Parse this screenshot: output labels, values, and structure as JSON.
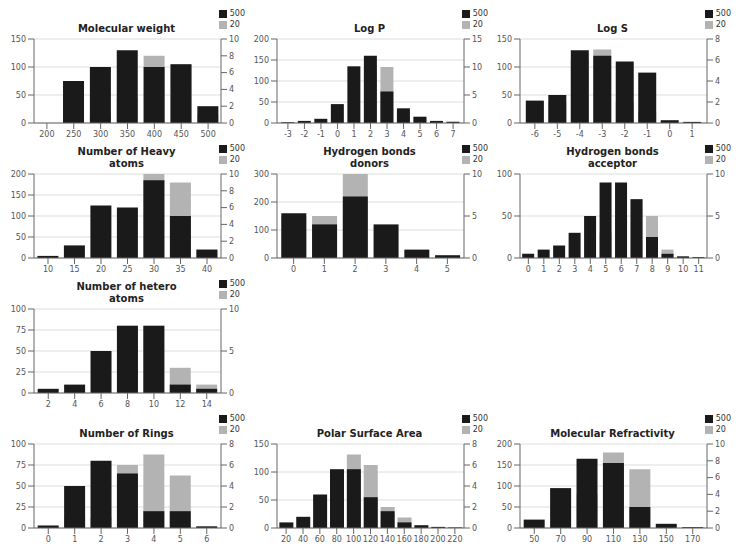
{
  "chart_data": [
    {
      "type": "bar",
      "title": "Molecular weight",
      "x": [
        200,
        250,
        300,
        350,
        400,
        450,
        500
      ],
      "xlim": [
        176,
        524
      ],
      "xticks": [
        200,
        250,
        300,
        350,
        400,
        450,
        500
      ],
      "series": [
        {
          "name": "500",
          "color": "#1a1a1a",
          "values": [
            0,
            75,
            100,
            130,
            100,
            105,
            30
          ]
        },
        {
          "name": "20",
          "color": "#b3b3b3",
          "axis": "y2",
          "values": [
            0,
            1,
            1,
            3,
            8,
            7,
            1
          ]
        }
      ],
      "ylim": [
        0,
        150
      ],
      "yticks": [
        0,
        50,
        100,
        150
      ],
      "y2lim": [
        0,
        10
      ],
      "y2ticks": [
        0,
        2,
        4,
        6,
        8,
        10
      ],
      "grid": true,
      "legend": "upper right"
    },
    {
      "type": "bar",
      "title": "Log P",
      "x": [
        -3,
        -2,
        -1,
        0,
        1,
        2,
        3,
        4,
        5,
        6,
        7
      ],
      "xlim": [
        -3.66,
        7.66
      ],
      "xticks": [
        -3,
        -2,
        -1,
        0,
        1,
        2,
        3,
        4,
        5,
        6,
        7
      ],
      "series": [
        {
          "name": "500",
          "color": "#1a1a1a",
          "values": [
            2,
            5,
            10,
            45,
            135,
            160,
            75,
            35,
            15,
            5,
            3
          ]
        },
        {
          "name": "20",
          "color": "#b3b3b3",
          "axis": "y2",
          "values": [
            0,
            0,
            0,
            0,
            0,
            10,
            10,
            2,
            1,
            0,
            0
          ]
        }
      ],
      "ylim": [
        0,
        200
      ],
      "yticks": [
        0,
        50,
        100,
        150,
        200
      ],
      "y2lim": [
        0,
        15
      ],
      "y2ticks": [
        0,
        5,
        10,
        15
      ],
      "grid": true,
      "legend": "upper right"
    },
    {
      "type": "bar",
      "title": "Log S",
      "x": [
        -6,
        -5,
        -4,
        -3,
        -2,
        -1,
        0,
        1
      ],
      "xlim": [
        -6.66,
        1.66
      ],
      "xticks": [
        -6,
        -5,
        -4,
        -3,
        -2,
        -1,
        0,
        1
      ],
      "series": [
        {
          "name": "500",
          "color": "#1a1a1a",
          "values": [
            40,
            50,
            130,
            120,
            110,
            90,
            5,
            2
          ]
        },
        {
          "name": "20",
          "color": "#b3b3b3",
          "axis": "y2",
          "values": [
            2,
            2,
            6,
            7,
            2,
            1,
            0,
            0
          ]
        }
      ],
      "ylim": [
        0,
        150
      ],
      "yticks": [
        0,
        50,
        100,
        150
      ],
      "y2lim": [
        0,
        8
      ],
      "y2ticks": [
        0,
        2,
        4,
        6,
        8
      ],
      "grid": true,
      "legend": "upper right"
    },
    {
      "type": "bar",
      "title": "Number of Heavy\natoms",
      "x": [
        10,
        15,
        20,
        25,
        30,
        35,
        40
      ],
      "xlim": [
        7.36,
        42.64
      ],
      "xticks": [
        10,
        15,
        20,
        25,
        30,
        35,
        40
      ],
      "series": [
        {
          "name": "500",
          "color": "#1a1a1a",
          "values": [
            5,
            30,
            125,
            120,
            185,
            100,
            20
          ]
        },
        {
          "name": "20",
          "color": "#b3b3b3",
          "axis": "y2",
          "values": [
            0,
            0,
            0,
            0,
            10,
            9,
            1
          ]
        }
      ],
      "ylim": [
        0,
        200
      ],
      "yticks": [
        0,
        50,
        100,
        150,
        200
      ],
      "y2lim": [
        0,
        10
      ],
      "y2ticks": [
        0,
        2,
        4,
        6,
        8,
        10
      ],
      "grid": true,
      "legend": "upper right"
    },
    {
      "type": "bar",
      "title": "Hydrogen bonds\ndonors",
      "x": [
        0,
        1,
        2,
        3,
        4,
        5
      ],
      "xlim": [
        -0.54,
        5.54
      ],
      "xticks": [
        0,
        1,
        2,
        3,
        4,
        5
      ],
      "series": [
        {
          "name": "500",
          "color": "#1a1a1a",
          "values": [
            160,
            120,
            220,
            120,
            30,
            10
          ]
        },
        {
          "name": "20",
          "color": "#b3b3b3",
          "axis": "y2",
          "values": [
            5,
            5,
            10,
            0,
            0,
            0
          ]
        }
      ],
      "ylim": [
        0,
        300
      ],
      "yticks": [
        0,
        100,
        200,
        300
      ],
      "y2lim": [
        0,
        10
      ],
      "y2ticks": [
        0,
        5,
        10
      ],
      "grid": true,
      "legend": "upper right"
    },
    {
      "type": "bar",
      "title": "Hydrogen bonds\nacceptor",
      "x": [
        0,
        1,
        2,
        3,
        4,
        5,
        6,
        7,
        8,
        9,
        10,
        11
      ],
      "xlim": [
        -0.54,
        11.54
      ],
      "xticks": [
        0,
        1,
        2,
        3,
        4,
        5,
        6,
        7,
        8,
        9,
        10,
        11
      ],
      "series": [
        {
          "name": "500",
          "color": "#1a1a1a",
          "values": [
            5,
            10,
            15,
            30,
            50,
            90,
            90,
            70,
            25,
            5,
            2,
            1
          ]
        },
        {
          "name": "20",
          "color": "#b3b3b3",
          "axis": "y2",
          "values": [
            0,
            0,
            0,
            0,
            0,
            3,
            5,
            7,
            5,
            1,
            0,
            0
          ]
        }
      ],
      "ylim": [
        0,
        100
      ],
      "yticks": [
        0,
        50,
        100
      ],
      "y2lim": [
        0,
        10
      ],
      "y2ticks": [
        0,
        5,
        10
      ],
      "grid": true,
      "legend": "upper right"
    },
    {
      "type": "bar",
      "title": "Number of hetero\natoms",
      "x": [
        2,
        4,
        6,
        8,
        10,
        12,
        14
      ],
      "xlim": [
        0.92,
        15.08
      ],
      "xticks": [
        2,
        4,
        6,
        8,
        10,
        12,
        14
      ],
      "series": [
        {
          "name": "500",
          "color": "#1a1a1a",
          "values": [
            5,
            10,
            50,
            80,
            80,
            10,
            5
          ]
        },
        {
          "name": "20",
          "color": "#b3b3b3",
          "axis": "y2",
          "values": [
            0,
            0,
            0,
            8,
            8,
            3,
            1
          ]
        }
      ],
      "ylim": [
        0,
        100
      ],
      "yticks": [
        0,
        25,
        50,
        75,
        100
      ],
      "y2lim": [
        0,
        10
      ],
      "y2ticks": [
        0,
        5,
        10
      ],
      "grid": true,
      "legend": "upper right"
    },
    {
      "type": "bar",
      "title": "Number of Rings",
      "x": [
        0,
        1,
        2,
        3,
        4,
        5,
        6
      ],
      "xlim": [
        -0.54,
        6.54
      ],
      "xticks": [
        0,
        1,
        2,
        3,
        4,
        5,
        6
      ],
      "series": [
        {
          "name": "500",
          "color": "#1a1a1a",
          "values": [
            3,
            50,
            80,
            65,
            20,
            20,
            2
          ]
        },
        {
          "name": "20",
          "color": "#b3b3b3",
          "axis": "y2",
          "values": [
            0,
            1,
            1,
            6,
            7,
            5,
            0
          ]
        }
      ],
      "ylim": [
        0,
        100
      ],
      "yticks": [
        0,
        25,
        50,
        75,
        100
      ],
      "y2lim": [
        0,
        8
      ],
      "y2ticks": [
        0,
        2,
        4,
        6,
        8
      ],
      "grid": true,
      "legend": "upper right"
    },
    {
      "type": "bar",
      "title": "Polar Surface Area",
      "x": [
        20,
        40,
        60,
        80,
        100,
        120,
        140,
        160,
        180,
        200,
        220
      ],
      "xlim": [
        9.2,
        230.8
      ],
      "xticks": [
        20,
        40,
        60,
        80,
        100,
        120,
        140,
        160,
        180,
        200,
        220
      ],
      "series": [
        {
          "name": "500",
          "color": "#1a1a1a",
          "values": [
            10,
            20,
            60,
            105,
            105,
            55,
            30,
            10,
            5,
            2,
            1
          ]
        },
        {
          "name": "20",
          "color": "#b3b3b3",
          "axis": "y2",
          "values": [
            0,
            0,
            0,
            3,
            7,
            6,
            2,
            1,
            0,
            0,
            0
          ]
        }
      ],
      "ylim": [
        0,
        150
      ],
      "yticks": [
        0,
        50,
        100,
        150
      ],
      "y2lim": [
        0,
        8
      ],
      "y2ticks": [
        0,
        2,
        4,
        6,
        8
      ],
      "grid": true,
      "legend": "upper right"
    },
    {
      "type": "bar",
      "title": "Molecular Refractivity",
      "x": [
        50,
        70,
        90,
        110,
        130,
        150,
        170
      ],
      "xlim": [
        39.2,
        180.8
      ],
      "xticks": [
        50,
        70,
        90,
        110,
        130,
        150,
        170
      ],
      "series": [
        {
          "name": "500",
          "color": "#1a1a1a",
          "values": [
            20,
            95,
            165,
            155,
            50,
            10,
            2
          ]
        },
        {
          "name": "20",
          "color": "#b3b3b3",
          "axis": "y2",
          "values": [
            0,
            0,
            4,
            9,
            7,
            0,
            0
          ]
        }
      ],
      "ylim": [
        0,
        200
      ],
      "yticks": [
        0,
        50,
        100,
        150,
        200
      ],
      "y2lim": [
        0,
        10
      ],
      "y2ticks": [
        0,
        2,
        4,
        6,
        8,
        10
      ],
      "grid": true,
      "legend": "upper right"
    }
  ]
}
